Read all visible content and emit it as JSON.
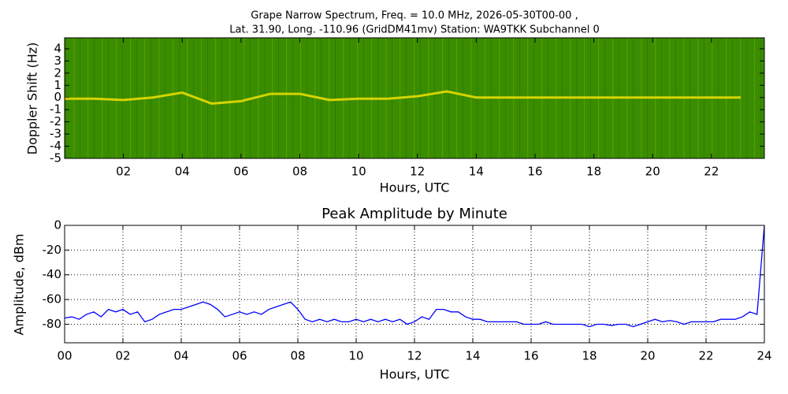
{
  "chart_data": [
    {
      "type": "spectrogram",
      "title": "Grape Narrow Spectrum, Freq. = 10.0 MHz, 2026-05-30T00-00 ,",
      "subtitle": "Lat.  31.90, Long. -110.96 (GridDM41mv) Station: WA9TKK Subchannel 0",
      "xlabel": "Hours, UTC",
      "ylabel": "Doppler Shift (Hz)",
      "background": "#3a8c00",
      "color": "#f0e000",
      "x": [
        0,
        1,
        2,
        3,
        4,
        5,
        6,
        7,
        8,
        9,
        10,
        11,
        12,
        13,
        14,
        15,
        16,
        17,
        18,
        19,
        20,
        21,
        22,
        23
      ],
      "values": [
        -0.1,
        -0.1,
        -0.2,
        0,
        0.4,
        -0.5,
        -0.3,
        0.3,
        0.3,
        -0.2,
        -0.1,
        -0.1,
        0.1,
        0.5,
        0,
        0,
        0,
        0,
        0,
        0,
        0,
        0,
        0,
        0
      ],
      "xlim": [
        0,
        23.8
      ],
      "ylim": [
        -5,
        4.9
      ],
      "xticks": [
        {
          "value": 2,
          "label": "02"
        },
        {
          "value": 4,
          "label": "04"
        },
        {
          "value": 6,
          "label": "06"
        },
        {
          "value": 8,
          "label": "08"
        },
        {
          "value": 10,
          "label": "10"
        },
        {
          "value": 12,
          "label": "12"
        },
        {
          "value": 14,
          "label": "14"
        },
        {
          "value": 16,
          "label": "16"
        },
        {
          "value": 18,
          "label": "18"
        },
        {
          "value": 20,
          "label": "20"
        },
        {
          "value": 22,
          "label": "22"
        }
      ],
      "yticks": [
        4,
        3,
        2,
        1,
        0,
        -1,
        -2,
        -3,
        -4,
        -5
      ],
      "grid": false
    },
    {
      "type": "line",
      "title": "Peak Amplitude by Minute",
      "xlabel": "Hours, UTC",
      "ylabel": "Amplitude, dBm",
      "x": [
        0,
        0.25,
        0.5,
        0.75,
        1,
        1.25,
        1.5,
        1.75,
        2,
        2.25,
        2.5,
        2.75,
        3,
        3.25,
        3.5,
        3.75,
        4,
        4.25,
        4.5,
        4.75,
        5,
        5.25,
        5.5,
        5.75,
        6,
        6.25,
        6.5,
        6.75,
        7,
        7.25,
        7.5,
        7.75,
        8,
        8.25,
        8.5,
        8.75,
        9,
        9.25,
        9.5,
        9.75,
        10,
        10.25,
        10.5,
        10.75,
        11,
        11.25,
        11.5,
        11.75,
        12,
        12.25,
        12.5,
        12.75,
        13,
        13.25,
        13.5,
        13.75,
        14,
        14.25,
        14.5,
        14.75,
        15,
        15.25,
        15.5,
        15.75,
        16,
        16.25,
        16.5,
        16.75,
        17,
        17.25,
        17.5,
        17.75,
        18,
        18.25,
        18.5,
        18.75,
        19,
        19.25,
        19.5,
        19.75,
        20,
        20.25,
        20.5,
        20.75,
        21,
        21.25,
        21.5,
        21.75,
        22,
        22.25,
        22.5,
        22.75,
        23,
        23.25,
        23.5,
        23.75,
        24
      ],
      "series": [
        {
          "color": "#0000ff",
          "values": [
            -75,
            -74,
            -76,
            -72,
            -70,
            -74,
            -68,
            -70,
            -68,
            -72,
            -70,
            -78,
            -76,
            -72,
            -70,
            -68,
            -68,
            -66,
            -64,
            -62,
            -64,
            -68,
            -74,
            -72,
            -70,
            -72,
            -70,
            -72,
            -68,
            -66,
            -64,
            -62,
            -68,
            -76,
            -78,
            -76,
            -78,
            -76,
            -78,
            -78,
            -76,
            -78,
            -76,
            -78,
            -76,
            -78,
            -76,
            -80,
            -78,
            -74,
            -76,
            -68,
            -68,
            -70,
            -70,
            -74,
            -76,
            -76,
            -78,
            -78,
            -78,
            -78,
            -78,
            -80,
            -80,
            -80,
            -78,
            -80,
            -80,
            -80,
            -80,
            -80,
            -82,
            -80,
            -80,
            -81,
            -80,
            -80,
            -82,
            -80,
            -78,
            -76,
            -78,
            -77,
            -78,
            -80,
            -78,
            -78,
            -78,
            -78,
            -76,
            -76,
            -76,
            -74,
            -70,
            -72,
            0
          ]
        }
      ],
      "xlim": [
        0,
        24
      ],
      "ylim": [
        -95,
        0
      ],
      "xticks": [
        {
          "value": 0,
          "label": "00"
        },
        {
          "value": 2,
          "label": "02"
        },
        {
          "value": 4,
          "label": "04"
        },
        {
          "value": 6,
          "label": "06"
        },
        {
          "value": 8,
          "label": "08"
        },
        {
          "value": 10,
          "label": "10"
        },
        {
          "value": 12,
          "label": "12"
        },
        {
          "value": 14,
          "label": "14"
        },
        {
          "value": 16,
          "label": "16"
        },
        {
          "value": 18,
          "label": "18"
        },
        {
          "value": 20,
          "label": "20"
        },
        {
          "value": 22,
          "label": "22"
        },
        {
          "value": 24,
          "label": "24"
        }
      ],
      "yticks": [
        0,
        -20,
        -40,
        -60,
        -80
      ],
      "grid": true
    }
  ]
}
